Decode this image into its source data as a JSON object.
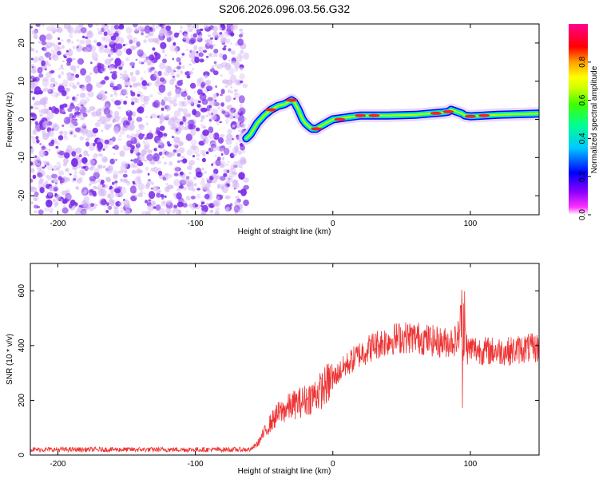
{
  "figure": {
    "title": "S206.2026.096.03.56.G32"
  },
  "chart_data": [
    {
      "type": "heatmap",
      "title": "S206.2026.096.03.56.G32",
      "xlabel": "Height of straight line (km)",
      "ylabel": "Frequency (Hz)",
      "xlim": [
        -220,
        150
      ],
      "ylim": [
        -25,
        25
      ],
      "xticks": [
        -200,
        -100,
        0,
        100
      ],
      "xtick_labels": [
        "-200",
        "-100",
        "0",
        "100"
      ],
      "yticks": [
        -20,
        -10,
        0,
        10,
        20
      ],
      "ytick_labels": [
        "-20",
        "-10",
        "0",
        "10",
        "20"
      ],
      "noise_region_km": [
        -220,
        -63
      ],
      "signal_track": {
        "x": [
          -63,
          -60,
          -55,
          -50,
          -45,
          -40,
          -35,
          -30,
          -28,
          -25,
          -22,
          -20,
          -17,
          -15,
          -12,
          -10,
          -5,
          0,
          10,
          20,
          40,
          60,
          70,
          80,
          84,
          86,
          90,
          94,
          96,
          100,
          110,
          120,
          130,
          140,
          150
        ],
        "y": [
          -5,
          -4,
          -1,
          1,
          2.5,
          3.5,
          4,
          5,
          4.5,
          2.5,
          0,
          -1,
          -2,
          -2.5,
          -2.5,
          -2,
          -1,
          0,
          0.5,
          1,
          1,
          1.2,
          1.5,
          1.8,
          2,
          2.5,
          2,
          1.5,
          1,
          0.8,
          1,
          1.2,
          1.3,
          1.4,
          1.5
        ]
      },
      "colorbar": {
        "label": "Normalized spectral amplitude",
        "range": [
          0,
          1
        ],
        "ticks": [
          0.0,
          0.2,
          0.4,
          0.6,
          0.8
        ],
        "tick_labels": [
          "0.0",
          "0.2",
          "0.4",
          "0.6",
          "0.8"
        ],
        "colormap": [
          "#ffffff",
          "#ff00ff",
          "#8000ff",
          "#0000ff",
          "#00c0ff",
          "#00ff80",
          "#40ff00",
          "#c0ff00",
          "#ffff00",
          "#ff8000",
          "#ff0000",
          "#ff0080"
        ]
      },
      "colors": {
        "noise": "#7a2ae8",
        "noise_light": "#d6b8f5"
      }
    },
    {
      "type": "line",
      "xlabel": "Height of straight line (km)",
      "ylabel": "SNR (10 * v/v)",
      "xlim": [
        -220,
        150
      ],
      "ylim": [
        0,
        700
      ],
      "xticks": [
        -200,
        -100,
        0,
        100
      ],
      "xtick_labels": [
        "-200",
        "-100",
        "0",
        "100"
      ],
      "yticks": [
        0,
        200,
        400,
        600
      ],
      "ytick_labels": [
        "0",
        "200",
        "400",
        "600"
      ],
      "series": [
        {
          "name": "SNR",
          "color": "#ee3333",
          "x": [
            -220,
            -200,
            -150,
            -100,
            -70,
            -60,
            -55,
            -50,
            -45,
            -40,
            -30,
            -20,
            -10,
            0,
            10,
            20,
            30,
            40,
            50,
            60,
            70,
            80,
            90,
            92,
            94,
            95,
            96,
            98,
            100,
            110,
            120,
            130,
            140,
            150
          ],
          "y": [
            20,
            20,
            20,
            20,
            20,
            20,
            40,
            80,
            120,
            150,
            180,
            200,
            230,
            280,
            330,
            370,
            400,
            420,
            430,
            430,
            420,
            410,
            420,
            450,
            560,
            300,
            450,
            380,
            390,
            380,
            380,
            380,
            390,
            390
          ]
        }
      ]
    }
  ]
}
